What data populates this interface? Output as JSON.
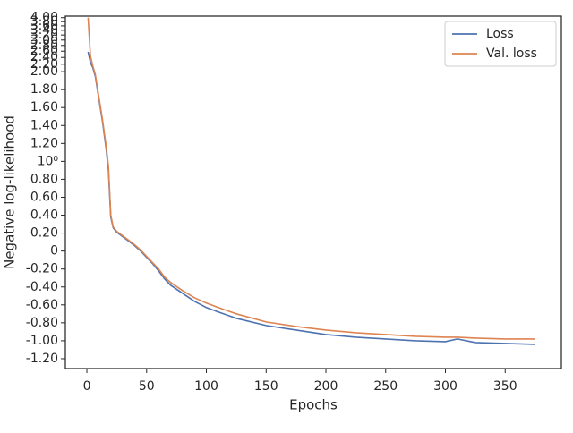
{
  "chart_data": {
    "type": "line",
    "xlabel": "Epochs",
    "ylabel": "Negative log-likelihood",
    "x": [
      1,
      3,
      5,
      7,
      10,
      13,
      16,
      18,
      20,
      22,
      25,
      30,
      35,
      40,
      45,
      50,
      55,
      60,
      65,
      70,
      80,
      90,
      100,
      110,
      125,
      150,
      175,
      200,
      225,
      250,
      275,
      300,
      310,
      325,
      350,
      375
    ],
    "series": [
      {
        "name": "Loss",
        "color": "#4c72b0",
        "values": [
          2.58,
          2.25,
          2.1,
          1.95,
          1.7,
          1.45,
          1.15,
          0.9,
          0.38,
          0.26,
          0.21,
          0.16,
          0.11,
          0.06,
          0.0,
          -0.07,
          -0.14,
          -0.22,
          -0.31,
          -0.38,
          -0.47,
          -0.56,
          -0.63,
          -0.68,
          -0.75,
          -0.83,
          -0.88,
          -0.93,
          -0.96,
          -0.98,
          -1.0,
          -1.01,
          -0.98,
          -1.02,
          -1.03,
          -1.04
        ]
      },
      {
        "name": "Val. loss",
        "color": "#dd8452",
        "values": [
          4.0,
          2.45,
          2.15,
          1.97,
          1.72,
          1.47,
          1.18,
          0.95,
          0.4,
          0.27,
          0.22,
          0.17,
          0.12,
          0.07,
          0.01,
          -0.06,
          -0.13,
          -0.2,
          -0.29,
          -0.35,
          -0.44,
          -0.52,
          -0.58,
          -0.63,
          -0.7,
          -0.79,
          -0.84,
          -0.88,
          -0.91,
          -0.93,
          -0.95,
          -0.96,
          -0.96,
          -0.97,
          -0.98,
          -0.98
        ]
      }
    ],
    "xlim": [
      -18,
      397
    ],
    "xticks": [
      0,
      50,
      100,
      150,
      200,
      250,
      300,
      350
    ],
    "ylim": [
      -1.31,
      4.08
    ],
    "yscale": "symlog",
    "yticks": [
      {
        "value": -1.2,
        "label": "-1.20"
      },
      {
        "value": -1,
        "label": "-1.00"
      },
      {
        "value": -0.8,
        "label": "-0.80"
      },
      {
        "value": -0.6,
        "label": "-0.60"
      },
      {
        "value": -0.4,
        "label": "-0.40"
      },
      {
        "value": -0.2,
        "label": "-0.20"
      },
      0,
      {
        "value": 0.2,
        "label": "0.20"
      },
      {
        "value": 0.4,
        "label": "0.40"
      },
      {
        "value": 0.6,
        "label": "0.60"
      },
      {
        "value": 0.8,
        "label": "0.80"
      },
      {
        "value": 1,
        "label": "10⁰"
      },
      {
        "value": 1.2,
        "label": "1.20"
      },
      {
        "value": 1.4,
        "label": "1.40"
      },
      {
        "value": 1.6,
        "label": "1.60"
      },
      {
        "value": 1.8,
        "label": "1.80"
      },
      {
        "value": 2,
        "label": "2.00"
      },
      {
        "value": 2.2,
        "label": "2.20"
      },
      {
        "value": 2.4,
        "label": "2.40"
      },
      {
        "value": 2.6,
        "label": "2.60"
      },
      {
        "value": 2.8,
        "label": "2.80"
      },
      {
        "value": 3,
        "label": "3.00"
      },
      {
        "value": 3.2,
        "label": "3.20"
      },
      {
        "value": 3.4,
        "label": "3.40"
      },
      {
        "value": 3.6,
        "label": "3.60"
      },
      {
        "value": 3.8,
        "label": "3.80"
      },
      {
        "value": 4,
        "label": "4.00"
      }
    ],
    "legend": "upper right"
  }
}
